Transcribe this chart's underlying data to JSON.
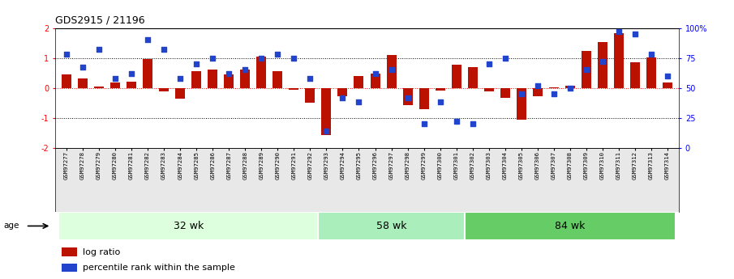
{
  "title": "GDS2915 / 21196",
  "samples": [
    "GSM97277",
    "GSM97278",
    "GSM97279",
    "GSM97280",
    "GSM97281",
    "GSM97282",
    "GSM97283",
    "GSM97284",
    "GSM97285",
    "GSM97286",
    "GSM97287",
    "GSM97288",
    "GSM97289",
    "GSM97290",
    "GSM97291",
    "GSM97292",
    "GSM97293",
    "GSM97294",
    "GSM97295",
    "GSM97296",
    "GSM97297",
    "GSM97298",
    "GSM97299",
    "GSM97300",
    "GSM97301",
    "GSM97302",
    "GSM97303",
    "GSM97304",
    "GSM97305",
    "GSM97306",
    "GSM97307",
    "GSM97308",
    "GSM97309",
    "GSM97310",
    "GSM97311",
    "GSM97312",
    "GSM97313",
    "GSM97314"
  ],
  "log_ratio": [
    0.45,
    0.32,
    0.05,
    0.18,
    0.2,
    0.95,
    -0.12,
    -0.35,
    0.55,
    0.6,
    0.45,
    0.62,
    1.05,
    0.55,
    -0.05,
    -0.5,
    -1.58,
    -0.28,
    0.4,
    0.48,
    1.1,
    -0.58,
    -0.72,
    -0.08,
    0.78,
    0.68,
    -0.12,
    -0.32,
    -1.05,
    -0.28,
    0.02,
    0.08,
    1.22,
    1.52,
    1.82,
    0.85,
    1.02,
    0.18
  ],
  "percentile_rank": [
    78,
    67,
    82,
    58,
    62,
    90,
    82,
    58,
    70,
    75,
    62,
    65,
    75,
    78,
    75,
    58,
    14,
    42,
    38,
    62,
    65,
    42,
    20,
    38,
    22,
    20,
    70,
    75,
    45,
    52,
    45,
    50,
    65,
    72,
    97,
    95,
    78,
    60
  ],
  "groups": [
    {
      "label": "32 wk",
      "start": 0,
      "end": 15
    },
    {
      "label": "58 wk",
      "start": 16,
      "end": 24
    },
    {
      "label": "84 wk",
      "start": 25,
      "end": 37
    }
  ],
  "bar_color": "#bb1100",
  "dot_color": "#2244cc",
  "ylim_left": [
    -2,
    2
  ],
  "ylim_right": [
    0,
    100
  ],
  "yticks_left": [
    -2,
    -1,
    0,
    1,
    2
  ],
  "yticks_right": [
    0,
    25,
    50,
    75,
    100
  ],
  "ytick_labels_right": [
    "0",
    "25",
    "50",
    "75",
    "100%"
  ],
  "hlines_dotted": [
    1.0,
    -1.0
  ],
  "hline_red": 0.0,
  "group_colors": [
    "#ddffdd",
    "#aaeebb",
    "#66cc66"
  ],
  "age_label": "age",
  "legend_bar_label": "log ratio",
  "legend_dot_label": "percentile rank within the sample",
  "background_color": "#ffffff",
  "xlabel_bg": "#dddddd"
}
